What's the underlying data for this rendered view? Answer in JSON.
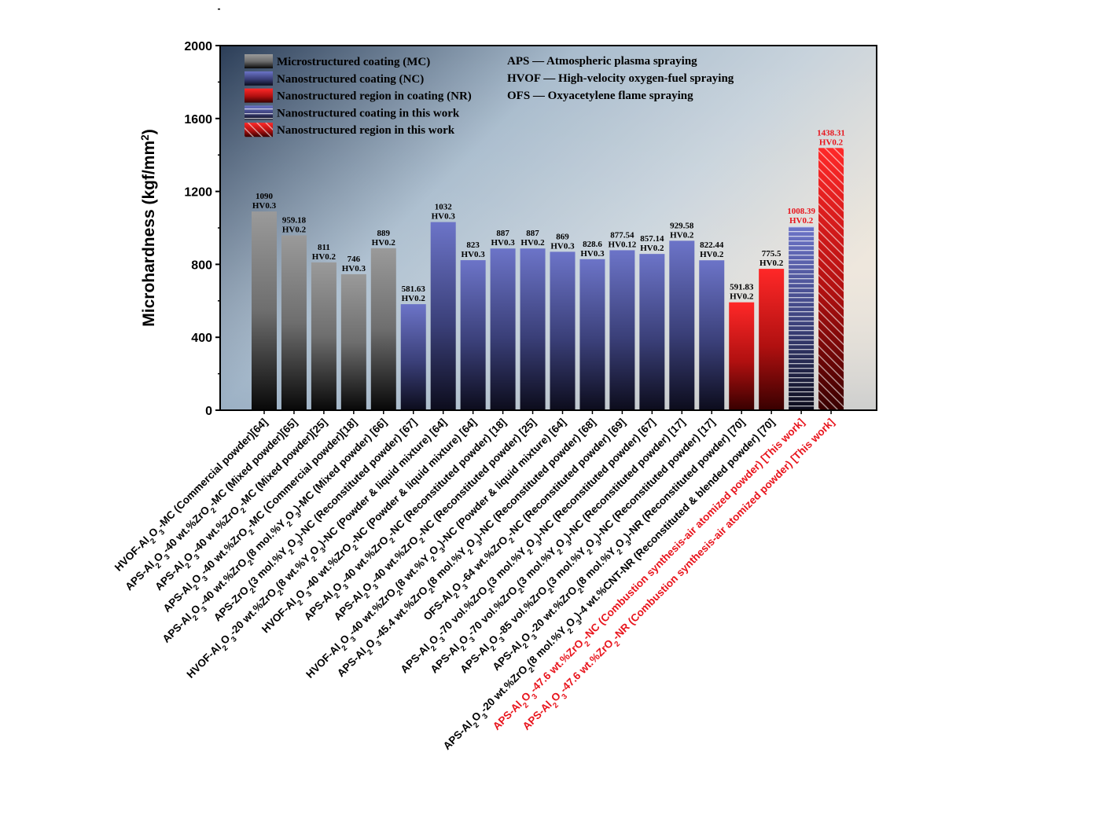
{
  "chart_data": {
    "type": "bar",
    "title": "",
    "xlabel": "",
    "ylabel": "Microhardness (kgf/mm²)",
    "ylim": [
      0,
      2000
    ],
    "yticks": [
      "0",
      "400",
      "800",
      "1200",
      "1600",
      "2000"
    ],
    "grid": false,
    "legend_position": "top-left",
    "legend": [
      {
        "label": "Microstructured coating (MC)",
        "style": "mc"
      },
      {
        "label": "Nanostructured coating (NC)",
        "style": "nc"
      },
      {
        "label": "Nanostructured region in coating (NR)",
        "style": "nr"
      },
      {
        "label": "Nanostructured coating in this work",
        "style": "nc-work"
      },
      {
        "label": "Nanostructured region in this work",
        "style": "nr-work"
      }
    ],
    "abbreviations": [
      "APS — Atmospheric plasma spraying",
      "HVOF — High-velocity oxygen-fuel spraying",
      "OFS — Oxyacetylene flame spraying"
    ],
    "colors": {
      "mc_top": "#9a9a9a",
      "mc_bottom": "#080808",
      "nc_top": "#6c74c8",
      "nc_bottom": "#0c0c1c",
      "nr_top": "#ff2828",
      "nr_bottom": "#380000",
      "highlight_text": "#e8141c",
      "bg_top_left": "#2c3e58",
      "bg_mid": "#b8c8d6",
      "bg_top_right": "#ede5da"
    },
    "bars": [
      {
        "category": "HVOF-Al₂O₃-MC (Commercial powder)[64]",
        "value": 1090,
        "value_label": "1090",
        "load": "HV0.3",
        "style": "mc"
      },
      {
        "category": "APS-Al₂O₃-40 wt.%ZrO₂-MC (Mixed powder)[65]",
        "value": 959.18,
        "value_label": "959.18",
        "load": "HV0.2",
        "style": "mc"
      },
      {
        "category": "APS-Al₂O₃-40 wt.%ZrO₂-MC (Mixed powder)[25]",
        "value": 811,
        "value_label": "811",
        "load": "HV0.2",
        "style": "mc"
      },
      {
        "category": "APS-Al₂O₃-40 wt.%ZrO₂-MC (Commercial powder)[18]",
        "value": 746,
        "value_label": "746",
        "load": "HV0.3",
        "style": "mc"
      },
      {
        "category": "APS-Al₂O₃-40 wt.%ZrO₂(8 mol.%Y₂O₃)-MC (Mixed powder) [66]",
        "value": 889,
        "value_label": "889",
        "load": "HV0.2",
        "style": "mc"
      },
      {
        "category": "APS-ZrO₂(3 mol.%Y₂O₃)-NC (Reconstituted powder) [67]",
        "value": 581.63,
        "value_label": "581.63",
        "load": "HV0.2",
        "style": "nc"
      },
      {
        "category": "HVOF-Al₂O₃-20 wt.%ZrO₂(8 wt.%Y₂O₃)-NC (Powder & liquid mixture) [64]",
        "value": 1032,
        "value_label": "1032",
        "load": "HV0.3",
        "style": "nc"
      },
      {
        "category": "HVOF-Al₂O₃-40 wt.%ZrO₂-NC (Powder & liquid mixture) [64]",
        "value": 823,
        "value_label": "823",
        "load": "HV0.3",
        "style": "nc"
      },
      {
        "category": "APS-Al₂O₃-40 wt.%ZrO₂-NC (Reconstituted powder) [18]",
        "value": 887,
        "value_label": "887",
        "load": "HV0.3",
        "style": "nc"
      },
      {
        "category": "APS-Al₂O₃-40 wt.%ZrO₂-NC (Reconstituted powder) [25]",
        "value": 887,
        "value_label": "887",
        "load": "HV0.2",
        "style": "nc"
      },
      {
        "category": "HVOF-Al₂O₃-40 wt.%ZrO₂(8 wt.%Y₂O₃)-NC (Powder & liquid mixture) [64]",
        "value": 869,
        "value_label": "869",
        "load": "HV0.3",
        "style": "nc"
      },
      {
        "category": "APS-Al₂O₃-45.4 wt.%ZrO₂(8 mol.%Y₂O₃)-NC (Reconstituted powder) [68]",
        "value": 828.6,
        "value_label": "828.6",
        "load": "HV0.3",
        "style": "nc"
      },
      {
        "category": "OFS-Al₂O₃-64 wt.%ZrO₂-NC (Reconstituted powder) [69]",
        "value": 877.54,
        "value_label": "877.54",
        "load": "HV0.12",
        "style": "nc"
      },
      {
        "category": "APS-Al₂O₃-70 vol.%ZrO₂(3 mol.%Y₂O₃)-NC (Reconstituted powder) [67]",
        "value": 857.14,
        "value_label": "857.14",
        "load": "HV0.2",
        "style": "nc"
      },
      {
        "category": "APS-Al₂O₃-70 vol.%ZrO₂(3 mol.%Y₂O₃)-NC (Reconstituted powder) [17]",
        "value": 929.58,
        "value_label": "929.58",
        "load": "HV0.2",
        "style": "nc"
      },
      {
        "category": "APS-Al₂O₃-85 vol.%ZrO₂(3 mol.%Y₂O₃)-NC (Reconstituted powder) [17]",
        "value": 822.44,
        "value_label": "822.44",
        "load": "HV0.2",
        "style": "nc"
      },
      {
        "category": "APS-Al₂O₃-20 wt.%ZrO₂(8 mol.%Y₂O₃)-NR (Reconstituted powder) [70]",
        "value": 591.83,
        "value_label": "591.83",
        "load": "HV0.2",
        "style": "nr"
      },
      {
        "category": "APS-Al₂O₃-20 wt.%ZrO₂(8 mol.%Y₂O₃)-4 wt.%CNT-NR (Reconstituted & blended powder) [70]",
        "value": 775.5,
        "value_label": "775.5",
        "load": "HV0.2",
        "style": "nr"
      },
      {
        "category": "APS-Al₂O₃-47.6 wt.%ZrO₂-NC (Combustion synthesis-air atomized powder) [This work]",
        "value": 1008.39,
        "value_label": "1008.39",
        "load": "HV0.2",
        "style": "nc-work",
        "highlight": true
      },
      {
        "category": "APS-Al₂O₃-47.6 wt.%ZrO₂-NR (Combustion synthesis-air atomized powder) [This work]",
        "value": 1438.31,
        "value_label": "1438.31",
        "load": "HV0.2",
        "style": "nr-work",
        "highlight": true
      }
    ]
  }
}
